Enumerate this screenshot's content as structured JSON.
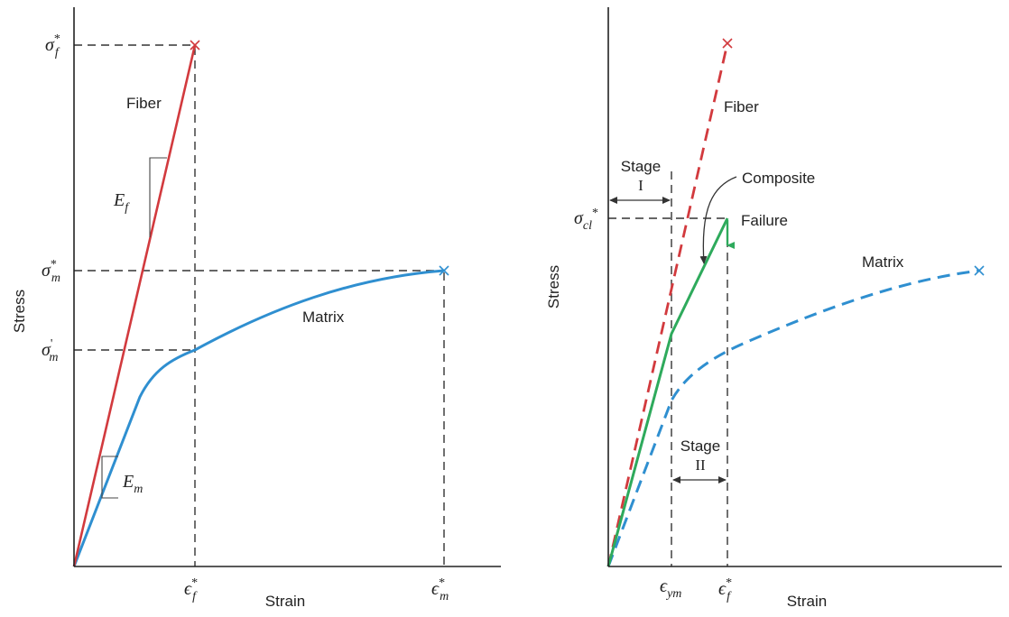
{
  "left_panel": {
    "y_axis_label": "Stress",
    "x_axis_label": "Strain",
    "fiber_label": "Fiber",
    "matrix_label": "Matrix",
    "fiber_modulus": {
      "main": "E",
      "sub": "f"
    },
    "matrix_modulus": {
      "main": "E",
      "sub": "m"
    },
    "y_ticks": [
      {
        "main": "σ",
        "sub": "f",
        "sup": "*"
      },
      {
        "main": "σ",
        "sub": "m",
        "sup": "*"
      },
      {
        "main": "σ",
        "sub": "m",
        "sup": "'"
      }
    ],
    "x_ticks": [
      {
        "main": "ϵ",
        "sub": "f",
        "sup": "*"
      },
      {
        "main": "ϵ",
        "sub": "m",
        "sup": "*"
      }
    ]
  },
  "right_panel": {
    "y_axis_label": "Stress",
    "x_axis_label": "Strain",
    "fiber_label": "Fiber",
    "matrix_label": "Matrix",
    "composite_label": "Composite",
    "failure_label": "Failure",
    "stage1": {
      "word": "Stage",
      "numeral": "I"
    },
    "stage2": {
      "word": "Stage",
      "numeral": "II"
    },
    "y_tick": {
      "main": "σ",
      "sub": "cl",
      "sup": "*"
    },
    "x_ticks": [
      {
        "main": "ϵ",
        "sub": "ym",
        "sup": ""
      },
      {
        "main": "ϵ",
        "sub": "f",
        "sup": "*"
      }
    ]
  },
  "colors": {
    "fiber": "#d23a3e",
    "matrix": "#2f8fd0",
    "composite": "#2eaa5c",
    "axes": "#222222"
  }
}
